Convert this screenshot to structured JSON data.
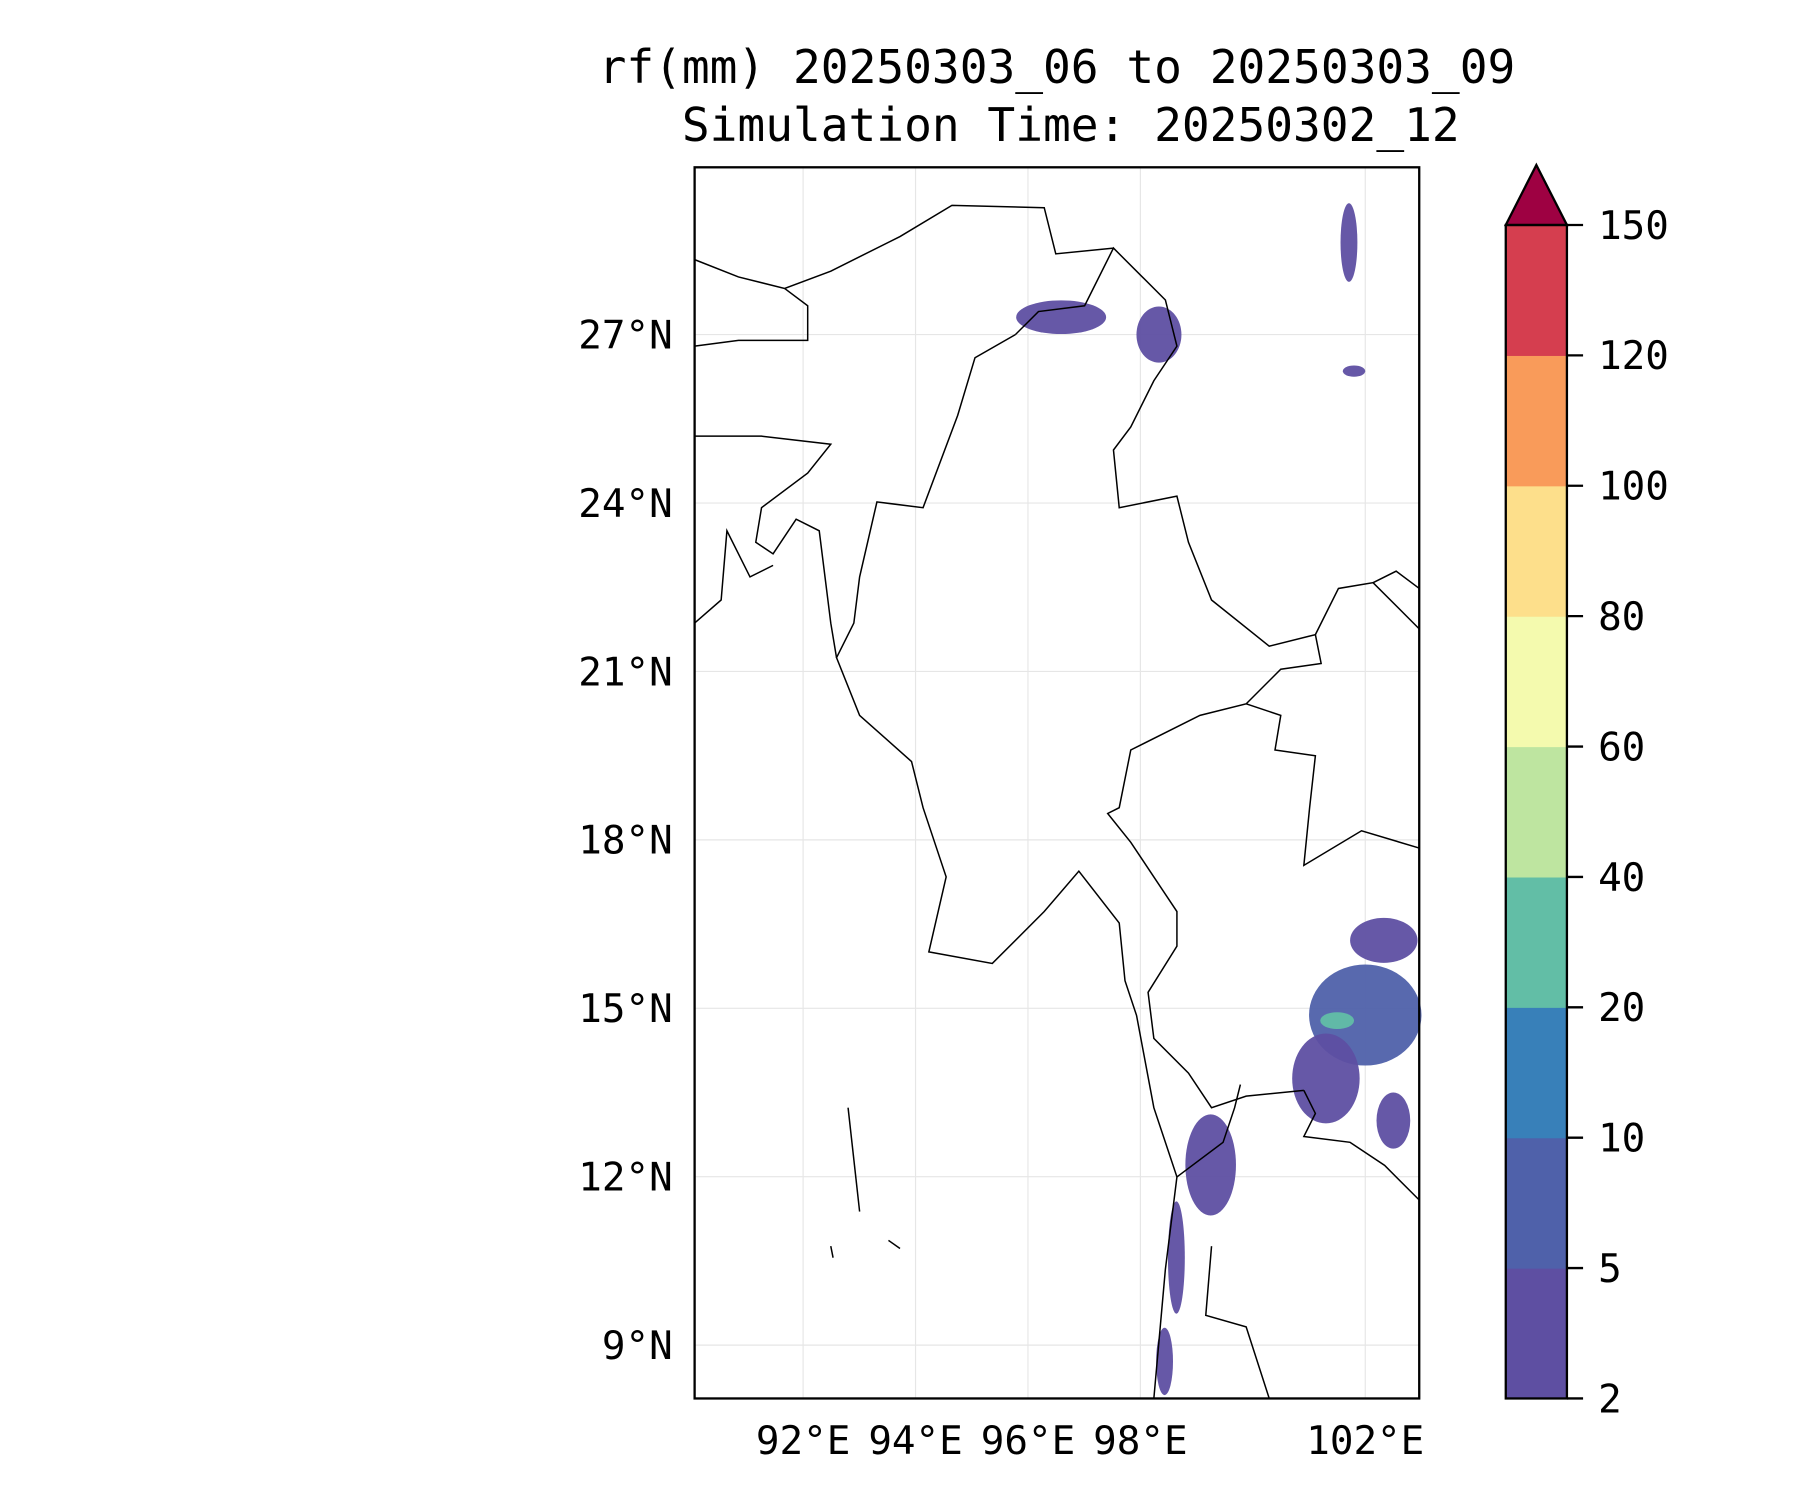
{
  "chart_data": {
    "type": "heatmap",
    "title_line1": "rf(mm) 20250303_06 to 20250303_09",
    "title_line2": "Simulation Time: 20250302_12",
    "xlim": [
      90.07,
      102.96
    ],
    "ylim": [
      8.05,
      29.98
    ],
    "grid": true,
    "x_ticks": [
      {
        "value": 92,
        "label": "92°E"
      },
      {
        "value": 94,
        "label": "94°E"
      },
      {
        "value": 96,
        "label": "96°E"
      },
      {
        "value": 98,
        "label": "98°E"
      },
      {
        "value": 102,
        "label": "102°E"
      }
    ],
    "y_ticks": [
      {
        "value": 27,
        "label": "27°N"
      },
      {
        "value": 24,
        "label": "24°N"
      },
      {
        "value": 21,
        "label": "21°N"
      },
      {
        "value": 18,
        "label": "18°N"
      },
      {
        "value": 15,
        "label": "15°N"
      },
      {
        "value": 12,
        "label": "12°N"
      },
      {
        "value": 9,
        "label": "9°N"
      }
    ],
    "colorbar": {
      "levels": [
        "2",
        "5",
        "10",
        "20",
        "40",
        "60",
        "80",
        "100",
        "120",
        "150"
      ],
      "colors": [
        "#5e4fa2",
        "#4f61aa",
        "#3880b9",
        "#62bea6",
        "#bee5a0",
        "#f4faae",
        "#fddf8b",
        "#f99b5a",
        "#d53e4f"
      ],
      "extend_color": "#9e0142"
    },
    "rain_cells": [
      {
        "lon": 96.59,
        "lat": 27.31,
        "rlon": 0.8,
        "rlat": 0.3,
        "mm": 4
      },
      {
        "lon": 98.33,
        "lat": 27.0,
        "rlon": 0.4,
        "rlat": 0.5,
        "mm": 4
      },
      {
        "lon": 101.71,
        "lat": 28.64,
        "rlon": 0.15,
        "rlat": 0.7,
        "mm": 3
      },
      {
        "lon": 101.8,
        "lat": 26.35,
        "rlon": 0.2,
        "rlat": 0.1,
        "mm": 3
      },
      {
        "lon": 102.0,
        "lat": 14.88,
        "rlon": 1.0,
        "rlat": 0.9,
        "mm": 6
      },
      {
        "lon": 102.33,
        "lat": 16.21,
        "rlon": 0.6,
        "rlat": 0.4,
        "mm": 4
      },
      {
        "lon": 101.3,
        "lat": 13.75,
        "rlon": 0.6,
        "rlat": 0.8,
        "mm": 4
      },
      {
        "lon": 102.5,
        "lat": 13.0,
        "rlon": 0.3,
        "rlat": 0.5,
        "mm": 3
      },
      {
        "lon": 99.25,
        "lat": 12.21,
        "rlon": 0.45,
        "rlat": 0.9,
        "mm": 4
      },
      {
        "lon": 98.64,
        "lat": 10.56,
        "rlon": 0.15,
        "rlat": 1.0,
        "mm": 4
      },
      {
        "lon": 98.43,
        "lat": 8.71,
        "rlon": 0.15,
        "rlat": 0.6,
        "mm": 3
      },
      {
        "lon": 101.5,
        "lat": 14.78,
        "rlon": 0.3,
        "rlat": 0.15,
        "mm": 25
      }
    ]
  }
}
